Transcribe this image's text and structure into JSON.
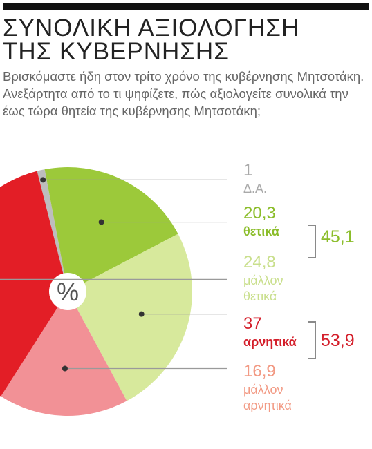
{
  "title_line1": "ΣΥΝΟΛΙΚΗ ΑΞΙΟΛΟΓΗΣΗ",
  "title_line2": "ΤΗΣ ΚΥΒΕΡΝΗΣΗΣ",
  "question": "Βρισκόμαστε ήδη στον τρίτο χρόνο της κυβέρνησης Μητσοτάκη. Ανεξάρτητα από το τι ψηφίζετε, πώς αξιολογείτε συνολικά την έως τώρα θητεία της κυβέρνησης Μητσοτάκη;",
  "chart_data": {
    "type": "pie",
    "center_label": "%",
    "slices": [
      {
        "label": "Δ.Α.",
        "value": 1,
        "value_text": "1",
        "color": "#bdbdbd",
        "label_color": "#a9a9a9"
      },
      {
        "label": "θετικά",
        "value": 20.3,
        "value_text": "20,3",
        "color": "#9cc93a",
        "label_color": "#8bbd2a"
      },
      {
        "label": "μάλλον θετικά",
        "value": 24.8,
        "value_text": "24,8",
        "color": "#d7e99c",
        "label_color": "#c9df8c"
      },
      {
        "label": "μάλλον αρνητικά",
        "value": 16.9,
        "value_text": "16,9",
        "color": "#f29196",
        "label_color": "#f29a84"
      },
      {
        "label": "αρνητικά",
        "value": 37,
        "value_text": "37",
        "color": "#e31e26",
        "label_color": "#d41f2b"
      }
    ],
    "groups": [
      {
        "total_text": "45,1",
        "members": [
          "θετικά",
          "μάλλον θετικά"
        ],
        "color": "#8bbd2a"
      },
      {
        "total_text": "53,9",
        "members": [
          "αρνητικά",
          "μάλλον αρνητικά"
        ],
        "color": "#d41f2b"
      }
    ],
    "bracket_color": "#8a8a8a",
    "leader_color": "#9a9a9a"
  }
}
